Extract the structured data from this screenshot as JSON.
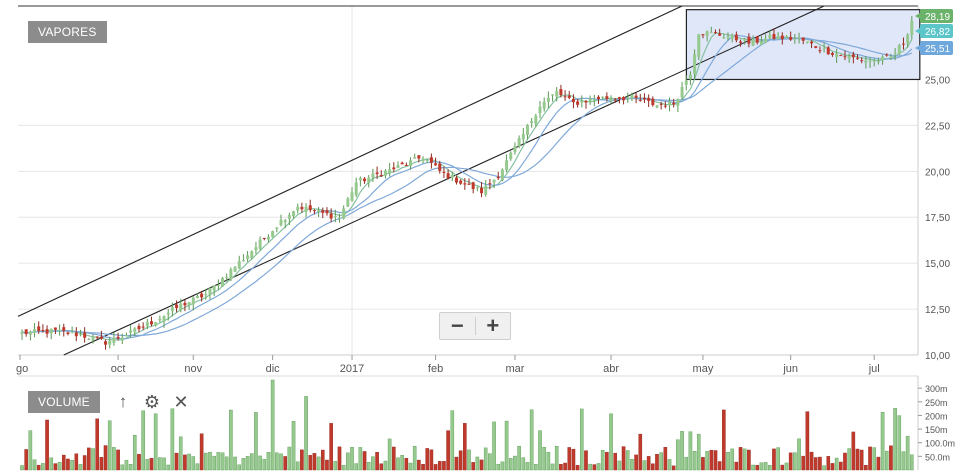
{
  "chart_data": {
    "type": "candlestick",
    "labels": {
      "main_series": "VAPORES",
      "volume_panel": "VOLUME"
    },
    "x_tick_labels": [
      "go",
      "oct",
      "nov",
      "dic",
      "2017",
      "feb",
      "mar",
      "abr",
      "may",
      "jun",
      "jul"
    ],
    "y_tick_labels": [
      "22,50",
      "20,00",
      "17,50",
      "15,00",
      "12,50",
      "10,00"
    ],
    "y_partial_label": "25,00",
    "ylim": [
      10.0,
      29.0
    ],
    "price_keypoints": [
      [
        0,
        11.2
      ],
      [
        8,
        11.3
      ],
      [
        14,
        11.1
      ],
      [
        20,
        10.7
      ],
      [
        26,
        11.2
      ],
      [
        32,
        11.9
      ],
      [
        38,
        12.7
      ],
      [
        44,
        13.3
      ],
      [
        50,
        14.6
      ],
      [
        56,
        15.9
      ],
      [
        62,
        17.3
      ],
      [
        66,
        18.1
      ],
      [
        72,
        17.7
      ],
      [
        76,
        17.5
      ],
      [
        80,
        19.4
      ],
      [
        86,
        19.9
      ],
      [
        92,
        20.4
      ],
      [
        96,
        20.8
      ],
      [
        100,
        20.0
      ],
      [
        106,
        19.3
      ],
      [
        110,
        18.9
      ],
      [
        114,
        19.8
      ],
      [
        120,
        22.0
      ],
      [
        124,
        23.6
      ],
      [
        128,
        24.3
      ],
      [
        132,
        23.7
      ],
      [
        138,
        24.0
      ],
      [
        146,
        24.0
      ],
      [
        152,
        23.6
      ],
      [
        156,
        23.7
      ],
      [
        160,
        25.4
      ],
      [
        162,
        27.6
      ],
      [
        168,
        27.4
      ],
      [
        174,
        27.0
      ],
      [
        180,
        27.3
      ],
      [
        186,
        27.2
      ],
      [
        192,
        26.6
      ],
      [
        198,
        26.2
      ],
      [
        204,
        26.0
      ],
      [
        208,
        26.2
      ],
      [
        211,
        27.0
      ],
      [
        213,
        28.19
      ]
    ],
    "price_labels": [
      {
        "text": "28,19",
        "color": "#6bb36b",
        "value": 28.19
      },
      {
        "text": "26,82",
        "color": "#5bc5c9",
        "value": 26.82
      },
      {
        "text": "25,51",
        "color": "#6ea8dc",
        "value": 25.51
      }
    ],
    "volume_ticks": [
      "300m",
      "250m",
      "200m",
      "150m",
      "100.0m",
      "50.0m"
    ],
    "volume_max": 330,
    "colors": {
      "up_candle": "#96c98e",
      "down_candle": "#c0392b",
      "moving_average": "#7fa9d9",
      "channel_line": "#222222",
      "grid": "#e6e6e6",
      "highlight_fill": "#dfe7f9",
      "highlight_stroke": "#222222"
    }
  },
  "ui": {
    "zoom_out_icon": "minus-icon",
    "zoom_in_icon": "plus-icon",
    "volume_tools": [
      "arrow-up-icon",
      "gear-icon",
      "close-icon"
    ]
  }
}
